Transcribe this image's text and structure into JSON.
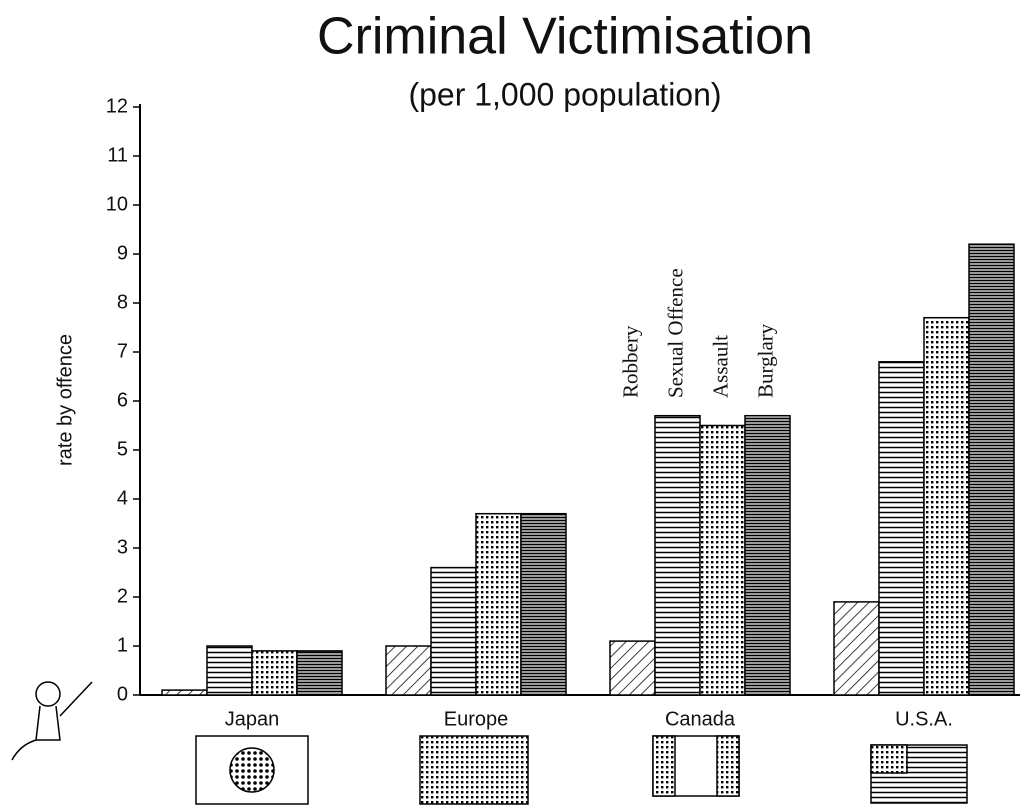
{
  "chart_data": {
    "type": "bar",
    "title": "Criminal Victimisation",
    "subtitle": "(per 1,000 population)",
    "y_label": "rate by offence",
    "categories": [
      "Japan",
      "Europe",
      "Canada",
      "U.S.A."
    ],
    "series": [
      {
        "name": "Robbery",
        "color": "#000000",
        "values": [
          0.1,
          1.0,
          1.1,
          1.9
        ]
      },
      {
        "name": "Sexual Offence",
        "color": "#000000",
        "values": [
          1.0,
          2.6,
          5.7,
          6.8
        ]
      },
      {
        "name": "Assault",
        "color": "#000000",
        "values": [
          0.9,
          3.7,
          5.5,
          7.7
        ]
      },
      {
        "name": "Burglary",
        "color": "#000000",
        "values": [
          0.9,
          3.7,
          5.7,
          9.2
        ]
      }
    ],
    "ylim": [
      0,
      12
    ],
    "yticks": [
      0,
      1,
      2,
      3,
      4,
      5,
      6,
      7,
      8,
      9,
      10,
      11,
      12
    ]
  }
}
